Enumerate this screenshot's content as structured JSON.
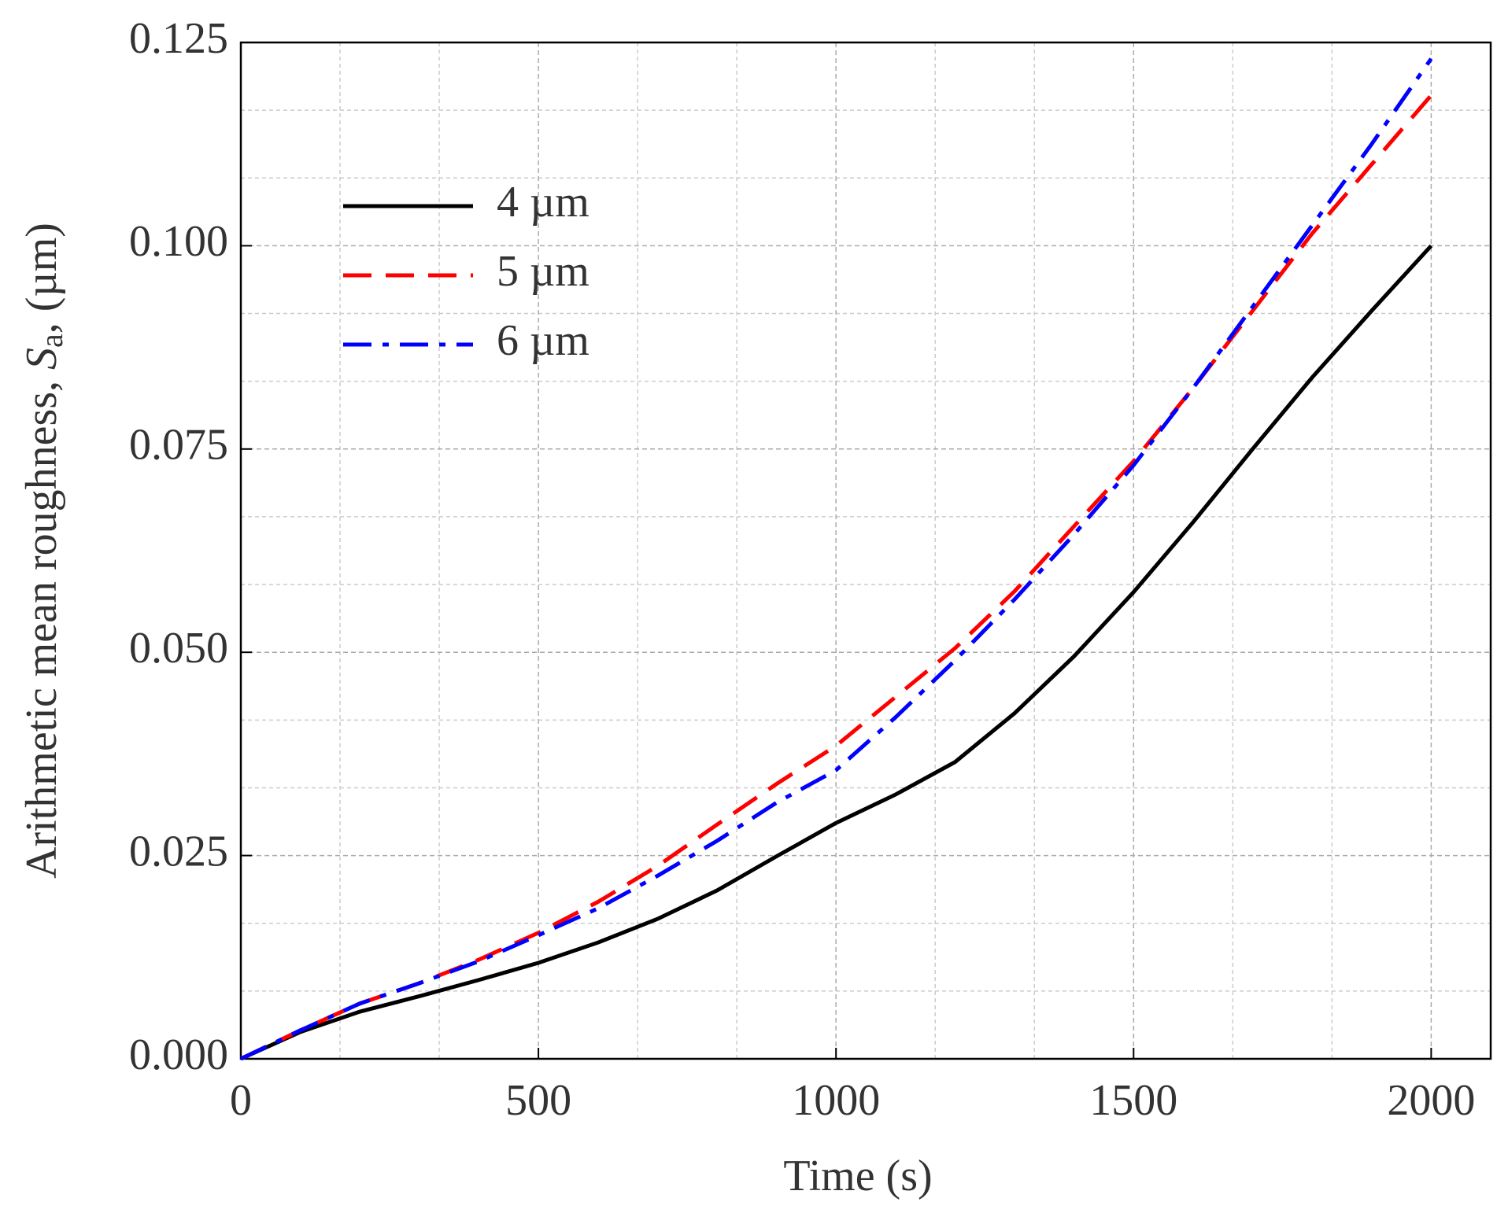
{
  "chart_data": {
    "type": "line",
    "xlabel": "Time (s)",
    "ylabel": "Arithmetic mean roughness, ",
    "ylabel_symbol": "S",
    "ylabel_subscript": "a",
    "ylabel_unit": ", (µm)",
    "x": [
      0,
      100,
      200,
      300,
      400,
      500,
      600,
      700,
      800,
      900,
      1000,
      1100,
      1200,
      1300,
      1400,
      1500,
      1600,
      1700,
      1800,
      1900,
      2000
    ],
    "series": [
      {
        "name": "4 µm",
        "color": "#000000",
        "style": "solid",
        "values": [
          0,
          0.0033,
          0.0058,
          0.0077,
          0.0097,
          0.0118,
          0.0143,
          0.0172,
          0.0207,
          0.0249,
          0.029,
          0.0325,
          0.0365,
          0.0425,
          0.0495,
          0.0574,
          0.066,
          0.075,
          0.0838,
          0.092,
          0.1
        ]
      },
      {
        "name": "5 µm",
        "color": "#ff0000",
        "style": "dashed",
        "values": [
          0,
          0.0035,
          0.0068,
          0.0093,
          0.0122,
          0.0155,
          0.0193,
          0.0237,
          0.0288,
          0.0338,
          0.0385,
          0.0445,
          0.0505,
          0.0575,
          0.0655,
          0.0735,
          0.0825,
          0.092,
          0.1015,
          0.11,
          0.1185
        ]
      },
      {
        "name": "6 µm",
        "color": "#0000ff",
        "style": "dashdot",
        "values": [
          0,
          0.0035,
          0.0068,
          0.0093,
          0.012,
          0.0152,
          0.0185,
          0.0225,
          0.0268,
          0.0315,
          0.0355,
          0.042,
          0.049,
          0.0565,
          0.0645,
          0.073,
          0.0825,
          0.0925,
          0.1025,
          0.1125,
          0.123
        ]
      }
    ],
    "xlim": [
      0,
      2100
    ],
    "xticks": [
      0,
      500,
      1000,
      1500,
      2000
    ],
    "ylim": [
      0,
      0.125
    ],
    "yticks": [
      {
        "value": 0,
        "label": "0.000"
      },
      {
        "value": 0.025,
        "label": "0.025"
      },
      {
        "value": 0.05,
        "label": "0.050"
      },
      {
        "value": 0.075,
        "label": "0.075"
      },
      {
        "value": 0.1,
        "label": "0.100"
      },
      {
        "value": 0.125,
        "label": "0.125"
      }
    ],
    "grid": true,
    "minor_divisions": 3,
    "legend": "upper left"
  }
}
